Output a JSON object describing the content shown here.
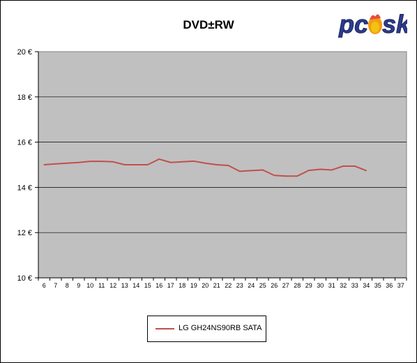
{
  "chart_data": {
    "type": "line",
    "title": "DVD±RW",
    "xlabel": "",
    "ylabel": "",
    "categories": [
      6,
      7,
      8,
      9,
      10,
      11,
      12,
      13,
      14,
      15,
      16,
      17,
      18,
      19,
      20,
      21,
      22,
      23,
      24,
      25,
      26,
      27,
      28,
      29,
      30,
      31,
      32,
      33,
      34,
      35,
      36,
      37
    ],
    "ylim": [
      10,
      20
    ],
    "yticks": [
      "10 €",
      "12 €",
      "14 €",
      "16 €",
      "18 €",
      "20 €"
    ],
    "ytick_values": [
      10,
      12,
      14,
      16,
      18,
      20
    ],
    "grid": true,
    "legend_position": "bottom-center",
    "series": [
      {
        "name": "LG GH24NS90RB SATA",
        "color": "#C0504D",
        "values": [
          15.0,
          15.04,
          15.07,
          15.1,
          15.15,
          15.15,
          15.13,
          15.0,
          15.0,
          15.0,
          15.25,
          15.1,
          15.13,
          15.16,
          15.07,
          15.0,
          14.97,
          14.71,
          14.74,
          14.77,
          14.53,
          14.5,
          14.5,
          14.75,
          14.8,
          14.77,
          14.94,
          14.94,
          14.74,
          null,
          null,
          null
        ]
      }
    ]
  },
  "colors": {
    "plot_background": "#C0C0C0",
    "gridline": "#000000",
    "series_line": "#C0504D"
  },
  "logo": {
    "text": "pcesk"
  }
}
